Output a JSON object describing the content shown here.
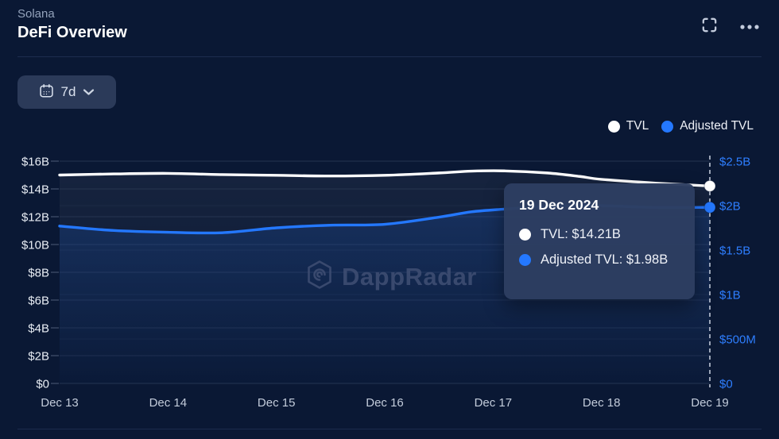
{
  "header": {
    "subtitle": "Solana",
    "title": "DeFi Overview"
  },
  "toolbar": {
    "range_label": "7d"
  },
  "icons": {
    "range_button": "calendar-icon",
    "range_caret": "chevron-down-icon",
    "expand": "fullscreen-icon",
    "menu": "ellipsis-icon"
  },
  "colors": {
    "background": "#0a1834",
    "accent_blue": "#2478ff",
    "tvl_white": "#ffffff",
    "right_axis_label": "#2e7eff",
    "tooltip_bg": "#2d3e61"
  },
  "legend": [
    {
      "label": "TVL",
      "color": "#ffffff"
    },
    {
      "label": "Adjusted TVL",
      "color": "#2478ff"
    }
  ],
  "watermark": "DappRadar",
  "tooltip": {
    "date": "19 Dec 2024",
    "rows": [
      {
        "label": "TVL: $14.21B",
        "color": "#ffffff"
      },
      {
        "label": "Adjusted TVL: $1.98B",
        "color": "#2478ff"
      }
    ]
  },
  "chart_data": {
    "type": "line",
    "title": "Solana DeFi Overview",
    "x_categories": [
      "Dec 13",
      "Dec 14",
      "Dec 15",
      "Dec 16",
      "Dec 17",
      "Dec 18",
      "Dec 19"
    ],
    "left_axis": {
      "ticks": [
        "$0",
        "$2B",
        "$4B",
        "$6B",
        "$8B",
        "$10B",
        "$12B",
        "$14B",
        "$16B"
      ],
      "min": 0,
      "max": 16,
      "unit": "billion USD",
      "color": "#e8edf4"
    },
    "right_axis": {
      "ticks": [
        "$0",
        "$500M",
        "$1B",
        "$1.5B",
        "$2B",
        "$2.5B"
      ],
      "min": 0,
      "max": 2.5,
      "unit": "billion USD",
      "color": "#2e7eff"
    },
    "grid": true,
    "legend_position": "top-right",
    "series": [
      {
        "name": "TVL",
        "axis": "left",
        "color": "#ffffff",
        "x": [
          0,
          0.5,
          1,
          1.5,
          2,
          2.5,
          3,
          3.5,
          3.8,
          4.1,
          4.5,
          4.8,
          5,
          5.5,
          6
        ],
        "values": [
          15.0,
          15.08,
          15.12,
          15.03,
          14.98,
          14.93,
          14.98,
          15.15,
          15.28,
          15.3,
          15.15,
          14.9,
          14.69,
          14.42,
          14.21
        ],
        "daily_values": {
          "Dec 13": 15.0,
          "Dec 14": 15.12,
          "Dec 15": 14.98,
          "Dec 16": 14.98,
          "Dec 17": 15.3,
          "Dec 18": 14.69,
          "Dec 19": 14.21
        }
      },
      {
        "name": "Adjusted TVL",
        "axis": "right",
        "color": "#2478ff",
        "x": [
          0,
          0.5,
          1,
          1.5,
          2,
          2.5,
          3,
          3.5,
          3.8,
          4.1,
          4.5,
          4.8,
          5,
          5.5,
          6
        ],
        "values": [
          1.77,
          1.72,
          1.7,
          1.695,
          1.75,
          1.78,
          1.79,
          1.87,
          1.93,
          1.96,
          1.99,
          2.0,
          2.0,
          1.98,
          1.98
        ],
        "daily_values": {
          "Dec 13": 1.77,
          "Dec 14": 1.7,
          "Dec 15": 1.75,
          "Dec 16": 1.79,
          "Dec 17": 1.96,
          "Dec 18": 2.0,
          "Dec 19": 1.98
        }
      }
    ],
    "highlighted_point": {
      "date": "19 Dec 2024",
      "TVL": "$14.21B",
      "Adjusted TVL": "$1.98B",
      "x_index": 6
    }
  }
}
